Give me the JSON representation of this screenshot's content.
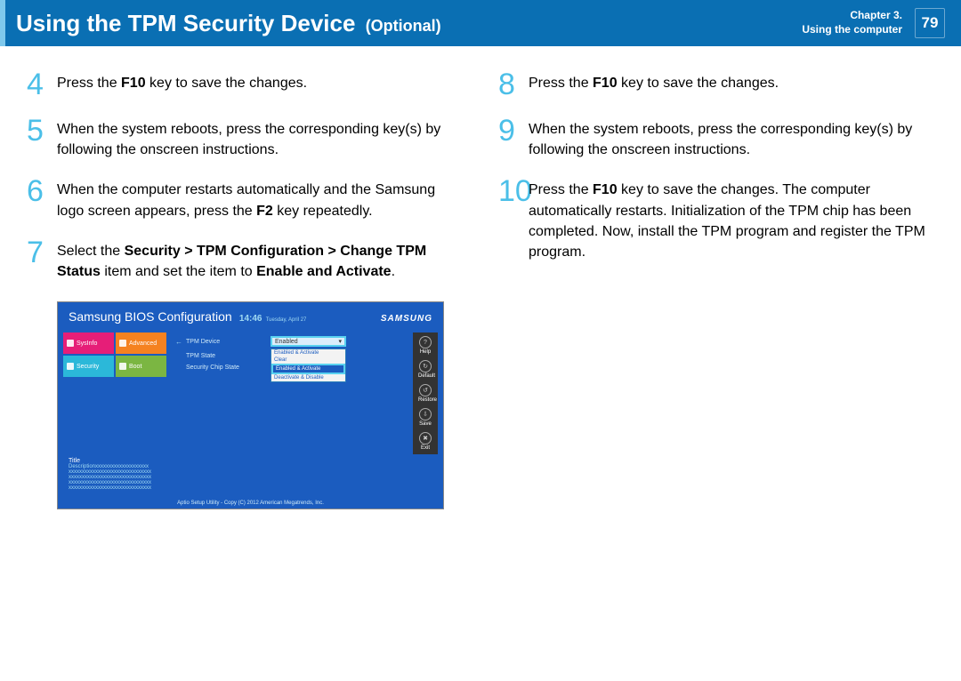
{
  "header": {
    "title": "Using the TPM Security Device",
    "optional": "(Optional)",
    "chapter_line1": "Chapter 3.",
    "chapter_line2": "Using the computer",
    "page": "79"
  },
  "left_steps": [
    {
      "num": "4",
      "html": "Press the <b>F10</b> key to save the changes."
    },
    {
      "num": "5",
      "html": "When the system reboots, press the corresponding key(s) by following the onscreen instructions."
    },
    {
      "num": "6",
      "html": "When the computer restarts automatically and the Samsung logo screen appears, press the <b>F2</b> key repeatedly."
    },
    {
      "num": "7",
      "html": "Select the <b>Security > TPM Configuration > Change TPM Status</b> item and set the item to <b>Enable and Activate</b>."
    }
  ],
  "right_steps": [
    {
      "num": "8",
      "html": "Press the <b>F10</b> key to save the changes."
    },
    {
      "num": "9",
      "html": "When the system reboots, press the corresponding key(s) by following the onscreen instructions."
    },
    {
      "num": "10",
      "html": "Press the <b>F10</b> key to save the changes. The computer automatically restarts. Initialization of the TPM chip has been completed. Now, install the TPM program and register the TPM program."
    }
  ],
  "bios": {
    "title": "Samsung BIOS Configuration",
    "time": "14:46",
    "date": "Tuesday, April 27",
    "logo": "SAMSUNG",
    "tabs": {
      "sysinfo": "SysInfo",
      "advanced": "Advanced",
      "security": "Security",
      "boot": "Boot"
    },
    "rows": {
      "tpm_device": "TPM Device",
      "tpm_state": "TPM State",
      "sec_chip": "Security Chip State",
      "enabled": "Enabled",
      "clear": "Clear"
    },
    "dropdown": {
      "o1": "Enabled & Activate",
      "o2": "Clear",
      "sel": "Enabled & Activate",
      "o3": "Deactivate & Disable"
    },
    "side": {
      "help": "Help",
      "default": "Default",
      "restore": "Restore",
      "save": "Save",
      "exit": "Exit"
    },
    "desc": {
      "title": "Title",
      "line": "Descriptionxxxxxxxxxxxxxxxxxxxx",
      "x": "xxxxxxxxxxxxxxxxxxxxxxxxxxxxxxx"
    },
    "footer": "Aptio Setup Utility - Copy (C) 2012 American Megatrends, Inc."
  }
}
